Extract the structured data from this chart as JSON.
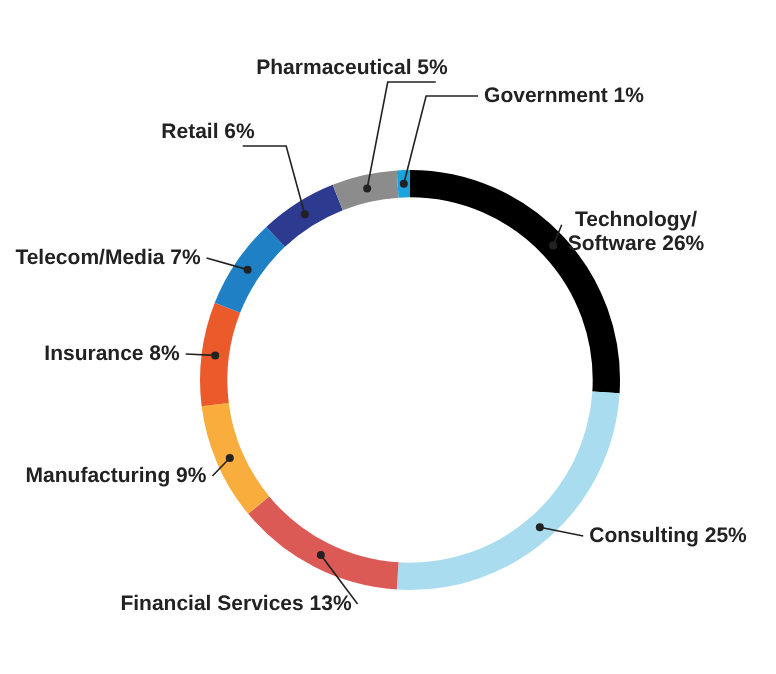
{
  "chart_data": {
    "type": "donut",
    "categories": [
      "Technology/ Software",
      "Consulting",
      "Financial Services",
      "Manufacturing",
      "Insurance",
      "Telecom/Media",
      "Retail",
      "Pharmaceutical",
      "Government"
    ],
    "values": [
      26,
      25,
      13,
      9,
      8,
      7,
      6,
      5,
      1
    ],
    "value_labels": [
      "26%",
      "25%",
      "13%",
      "9%",
      "8%",
      "7%",
      "6%",
      "5%",
      "1%"
    ],
    "colors": [
      "#000000",
      "#a8dcee",
      "#dc5a55",
      "#f9ad3c",
      "#ea5a2a",
      "#1f80c6",
      "#2c3a8f",
      "#8c8c8c",
      "#1aa3dc"
    ],
    "legend": false
  }
}
